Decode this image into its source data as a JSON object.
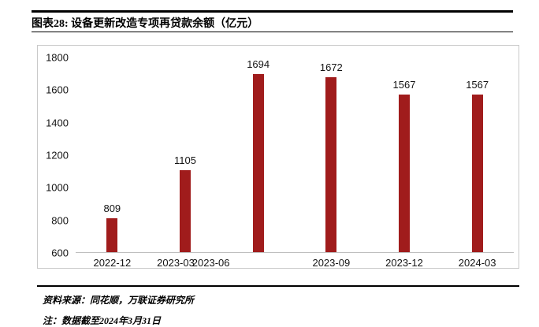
{
  "header": {
    "title": "图表28: 设备更新改造专项再贷款余额（亿元）"
  },
  "chart_data": {
    "type": "bar",
    "title": "设备更新改造专项再贷款余额（亿元）",
    "categories": [
      "2022-12",
      "2023-03",
      "2023-06",
      "2023-09",
      "2023-12",
      "2024-03"
    ],
    "values": [
      809,
      1105,
      1694,
      1672,
      1567,
      1567
    ],
    "ylim": [
      600,
      1800
    ],
    "yticks": [
      600,
      800,
      1000,
      1200,
      1400,
      1600,
      1800
    ],
    "ylabel": "",
    "xlabel": "",
    "bar_color": "#a01c1c",
    "grid": false,
    "legend": "none",
    "value_labels": true
  },
  "footer": {
    "source": "资料来源：同花顺，万联证券研究所",
    "note": "注：数据截至2024年3月31日"
  }
}
